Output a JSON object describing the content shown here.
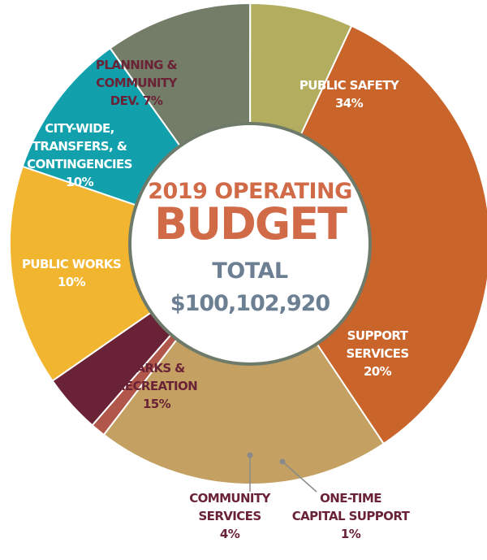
{
  "chart_data": {
    "type": "pie",
    "title_line1": "2019 OPERATING",
    "title_line2": "BUDGET",
    "total_label": "TOTAL",
    "total_value": "$100,102,920",
    "colors": {
      "title": "#d06a47",
      "total": "#6d7f92",
      "ring": "#6e7a6a",
      "label_dark": "#6a2236",
      "label_light": "#ffffff"
    },
    "slices": [
      {
        "key": "public-safety",
        "lines": [
          "PUBLIC SAFETY",
          "34%"
        ],
        "value": 34,
        "color": "#c9652a"
      },
      {
        "key": "support-services",
        "lines": [
          "SUPPORT",
          "SERVICES",
          "20%"
        ],
        "value": 20,
        "color": "#c4a062"
      },
      {
        "key": "one-time-capital-support",
        "lines": [
          "ONE-TIME",
          "CAPITAL SUPPORT",
          "1%"
        ],
        "value": 1,
        "color": "#b1564a"
      },
      {
        "key": "community-services",
        "lines": [
          "COMMUNITY",
          "SERVICES",
          "4%"
        ],
        "value": 4,
        "color": "#6a2236"
      },
      {
        "key": "parks-recreation",
        "lines": [
          "PARKS &",
          "RECREATION",
          "15%"
        ],
        "value": 15,
        "color": "#f2b530"
      },
      {
        "key": "public-works",
        "lines": [
          "PUBLIC WORKS",
          "10%"
        ],
        "value": 10,
        "color": "#12a0ad"
      },
      {
        "key": "city-wide",
        "lines": [
          "CITY-WIDE,",
          "TRANSFERS, &",
          "CONTINGENCIES",
          "10%"
        ],
        "value": 10,
        "color": "#737d68"
      },
      {
        "key": "planning-community-dev",
        "lines": [
          "PLANNING &",
          "COMMUNITY",
          "DEV. 7%"
        ],
        "value": 7,
        "color": "#b3ae5f"
      }
    ]
  }
}
